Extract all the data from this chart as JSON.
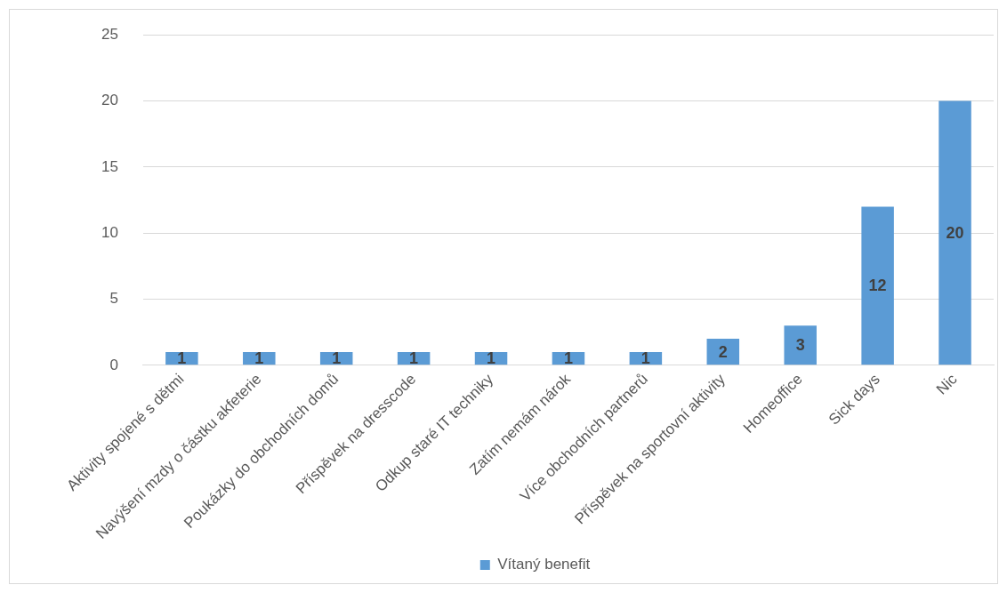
{
  "chart_data": {
    "type": "bar",
    "categories": [
      "Aktivity spojené s dětmi",
      "Navýšení mzdy o částku akfeterie",
      "Poukázky do obchodních domů",
      "Příspěvek na dresscode",
      "Odkup staré IT techniky",
      "Zatím nemám nárok",
      "Více obchodních partnerů",
      "Příspěvek na sportovní aktivity",
      "Homeoffice",
      "Sick days",
      "Nic"
    ],
    "series": [
      {
        "name": "Vítaný benefit",
        "color": "#5b9bd5",
        "values": [
          1,
          1,
          1,
          1,
          1,
          1,
          1,
          2,
          3,
          12,
          20
        ]
      }
    ],
    "ylim": [
      0,
      25
    ],
    "yticks": [
      0,
      5,
      10,
      15,
      20,
      25
    ],
    "grid": "y",
    "legend": "bottom",
    "data_labels": true
  }
}
